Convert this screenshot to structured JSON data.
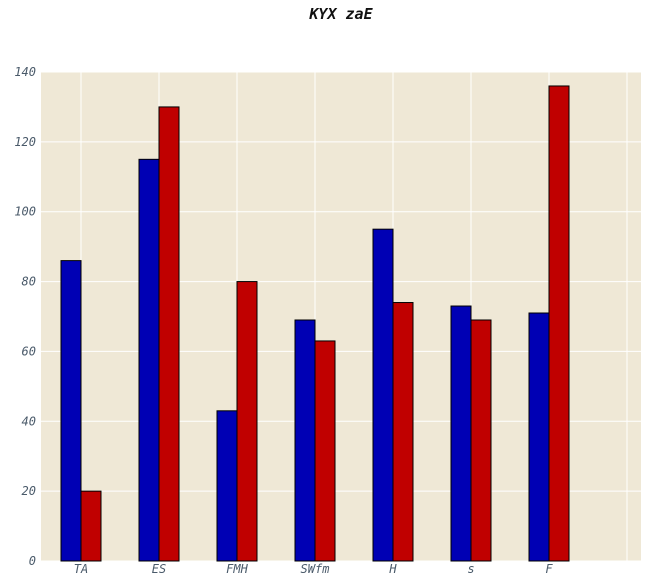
{
  "chart_data": {
    "type": "bar",
    "title": "KYX zaE",
    "xlabel": "",
    "ylabel": "",
    "categories": [
      "TA",
      "ES",
      "FMH",
      "SWfm",
      "H",
      "s",
      "F"
    ],
    "series": [
      {
        "values": [
          86,
          115,
          43,
          69,
          95,
          73,
          71
        ]
      },
      {
        "values": [
          20,
          130,
          80,
          63,
          74,
          69,
          136
        ]
      }
    ],
    "ylim": [
      0,
      140
    ],
    "yticks": [
      0,
      20,
      40,
      60,
      80,
      100,
      120,
      140
    ],
    "grid": true,
    "colors": {
      "series": [
        "#0000b4",
        "#c00000"
      ],
      "background": "#efe8d6",
      "grid": "#ffffff"
    }
  }
}
